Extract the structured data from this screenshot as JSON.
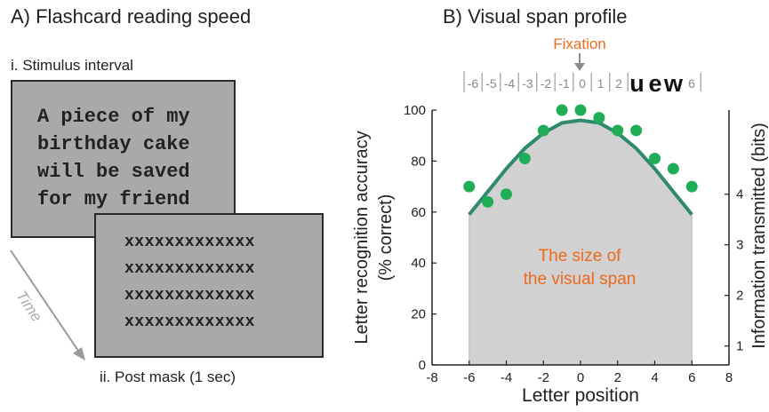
{
  "panel_a": {
    "title": "A) Flashcard reading speed",
    "stimulus_label": "i. Stimulus interval",
    "sentence_lines": [
      "A piece of my",
      "birthday cake",
      "will be saved",
      "for my friend"
    ],
    "mask_lines": [
      "xxxxxxxxxxxxx",
      "xxxxxxxxxxxxx",
      "xxxxxxxxxxxxx",
      "xxxxxxxxxxxxx"
    ],
    "time_label": "Time",
    "post_mask_label": "ii. Post mask (1 sec)"
  },
  "panel_b": {
    "title": "B) Visual span profile",
    "fixation_label": "Fixation",
    "strip_chars": [
      "-6",
      "-5",
      "-4",
      "-3",
      "-2",
      "-1",
      "0",
      "1",
      "2",
      "u",
      "e",
      "w",
      "6"
    ],
    "annotation_line1": "The size of",
    "annotation_line2": "the visual span",
    "colors": {
      "curve": "#2e8a6f",
      "points": "#1fae56",
      "fill": "#d1d1d1",
      "annotation": "#ee6a1c",
      "fixation": "#ee6a1c"
    }
  },
  "chart_data": {
    "type": "scatter",
    "xlabel": "Letter position",
    "ylabel_lines": [
      "Letter recognition accuracy",
      "(% correct)"
    ],
    "ylabel_right": "Information transmitted (bits)",
    "xlim": [
      -8,
      8
    ],
    "ylim": [
      0,
      100
    ],
    "xticks": [
      -8,
      -6,
      -4,
      -2,
      0,
      2,
      4,
      6,
      8
    ],
    "yticks": [
      0,
      20,
      40,
      60,
      80,
      100
    ],
    "yticks_right": [
      1,
      2,
      3,
      4
    ],
    "grid": false,
    "series": [
      {
        "kind": "points",
        "x": [
          -6,
          -5,
          -4,
          -3,
          -2,
          -1,
          0,
          1,
          2,
          3,
          4,
          5,
          6
        ],
        "y": [
          70,
          64,
          67,
          81,
          92,
          100,
          100,
          97,
          92,
          92,
          81,
          77,
          70
        ]
      },
      {
        "kind": "fit_curve",
        "x": [
          -6,
          -5,
          -4,
          -3,
          -2,
          -1,
          0,
          1,
          2,
          3,
          4,
          5,
          6
        ],
        "y": [
          59,
          68,
          77,
          85,
          91,
          95,
          96,
          95,
          91,
          85,
          77,
          68,
          59
        ]
      }
    ]
  }
}
